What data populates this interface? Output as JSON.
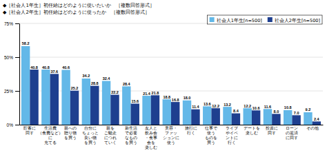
{
  "chart_data": {
    "type": "bar",
    "title": "◆［社会人1年生］初任給はどのように使いたいか　［複数回答形式］",
    "subtitle": "◆［社会人2年生］初任給はどのように使ったか　［複数回答形式］",
    "categories": [
      "貯蓄に\n回す",
      "生活費\n（食費など）\nに\n充てる",
      "親への\n贈り物\nを買う",
      "自分に\nちょっと\n良い物\nを買う",
      "親を\nご馳走\nにつれ\nていく",
      "新生活\nで必要\nなもの\nを買う",
      "友人と\n飲み会\n・食事\n会を\n楽しむ",
      "美容・\nファッ\nションに\n使う",
      "旅行に\n行く",
      "仕事で\n使う\nものを\n買う",
      "ライブ\nやイベ\nントに\n行く",
      "デートを\n楽しむ",
      "投資に\n回す",
      "ローン\nの返済\nに回す",
      "その他"
    ],
    "series": [
      {
        "name": "社会人1年生[n=500]",
        "color": "#63b8e8",
        "values": [
          58.2,
          40.8,
          40.6,
          34.2,
          32.4,
          28.4,
          21.4,
          18.8,
          18.0,
          13.6,
          13.2,
          12.2,
          11.6,
          10.8,
          9.2
        ],
        "value_labels": [
          "58.2",
          "40.8",
          "40.6",
          "34.2",
          "32.4",
          "28.4",
          "21.4",
          "18.8",
          "18.0",
          "13.6",
          "13.2",
          "12.2",
          "11.6",
          "10.8",
          "9.2"
        ]
      },
      {
        "name": "社会人2年生[n=500]",
        "color": "#1e3f8f",
        "values": [
          40.8,
          37.6,
          25.2,
          28.8,
          22.2,
          15.6,
          21.8,
          16.8,
          11.4,
          12.2,
          8.4,
          10.6,
          8.0,
          7.0,
          2.4
        ],
        "value_labels": [
          "40.8",
          "37.6",
          "25.2",
          "28.8",
          "22.2",
          "15.6",
          "21.8",
          "16.8",
          "11.4",
          "12.2",
          "8.4",
          "10.6",
          "8.0",
          "7.0",
          "2.4"
        ]
      }
    ],
    "ylim": [
      0,
      75
    ],
    "yticks": [
      {
        "value": 0,
        "label": "0%"
      },
      {
        "value": 25,
        "label": "25%"
      },
      {
        "value": 50,
        "label": "50%"
      },
      {
        "value": 75,
        "label": "75%"
      }
    ],
    "grid": true,
    "legend": "upper right",
    "data_labels": true
  }
}
